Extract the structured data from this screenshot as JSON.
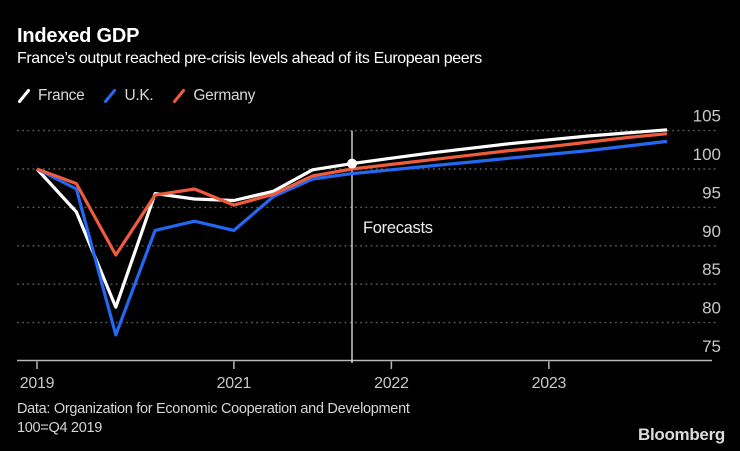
{
  "header": {
    "title": "Indexed GDP",
    "subtitle": "France’s output reached pre-crisis levels ahead of its European peers"
  },
  "chart_data": {
    "type": "line",
    "index_note": "100=Q4 2019",
    "x_quarters": [
      "Q4 2019",
      "Q1 2020",
      "Q2 2020",
      "Q3 2020",
      "Q4 2020",
      "Q1 2021",
      "Q2 2021",
      "Q3 2021",
      "Q4 2021",
      "Q1 2022",
      "Q2 2022",
      "Q3 2022",
      "Q4 2022",
      "Q1 2023",
      "Q2 2023",
      "Q3 2023",
      "Q4 2023"
    ],
    "series": [
      {
        "name": "France",
        "color": "#ffffff",
        "values": [
          100,
          94.4,
          82.0,
          96.8,
          96.1,
          95.9,
          97.1,
          99.9,
          100.7,
          101.4,
          102.1,
          102.7,
          103.3,
          103.8,
          104.3,
          104.7,
          105.1
        ]
      },
      {
        "name": "U.K.",
        "color": "#2368f0",
        "values": [
          100,
          97.4,
          78.4,
          92.0,
          93.2,
          92.0,
          96.4,
          98.7,
          99.4,
          99.9,
          100.4,
          100.9,
          101.4,
          101.9,
          102.4,
          103.0,
          103.6
        ]
      },
      {
        "name": "Germany",
        "color": "#ef5b3d",
        "values": [
          100,
          98.1,
          88.8,
          96.6,
          97.4,
          95.3,
          96.7,
          99.1,
          100.0,
          100.6,
          101.2,
          101.8,
          102.4,
          102.9,
          103.5,
          104.1,
          104.6
        ]
      }
    ],
    "xticks": [
      {
        "label": "2019",
        "quarter_index": 0
      },
      {
        "label": "2021",
        "quarter_index": 5
      },
      {
        "label": "2022",
        "quarter_index": 9
      },
      {
        "label": "2023",
        "quarter_index": 13
      }
    ],
    "yticks": [
      105,
      100,
      95,
      90,
      85,
      80,
      75
    ],
    "ylim": [
      75,
      105
    ],
    "grid": "dotted-horizontal",
    "legend_position": "top-left",
    "annotations": {
      "forecast_label": "Forecasts",
      "forecast_line_quarter_index": 8,
      "marker": {
        "series": "France",
        "quarter_index": 8,
        "value": 100.7
      }
    },
    "colors": {
      "grid": "#5c5c5c",
      "axis": "#b8b8b8",
      "tick_label": "#c8c8c8",
      "forecast_line": "#e8e8e8",
      "forecast_text": "#ededed"
    }
  },
  "footer": {
    "source": "Data: Organization for Economic Cooperation and Development",
    "note": "100=Q4 2019",
    "brand": "Bloomberg"
  }
}
